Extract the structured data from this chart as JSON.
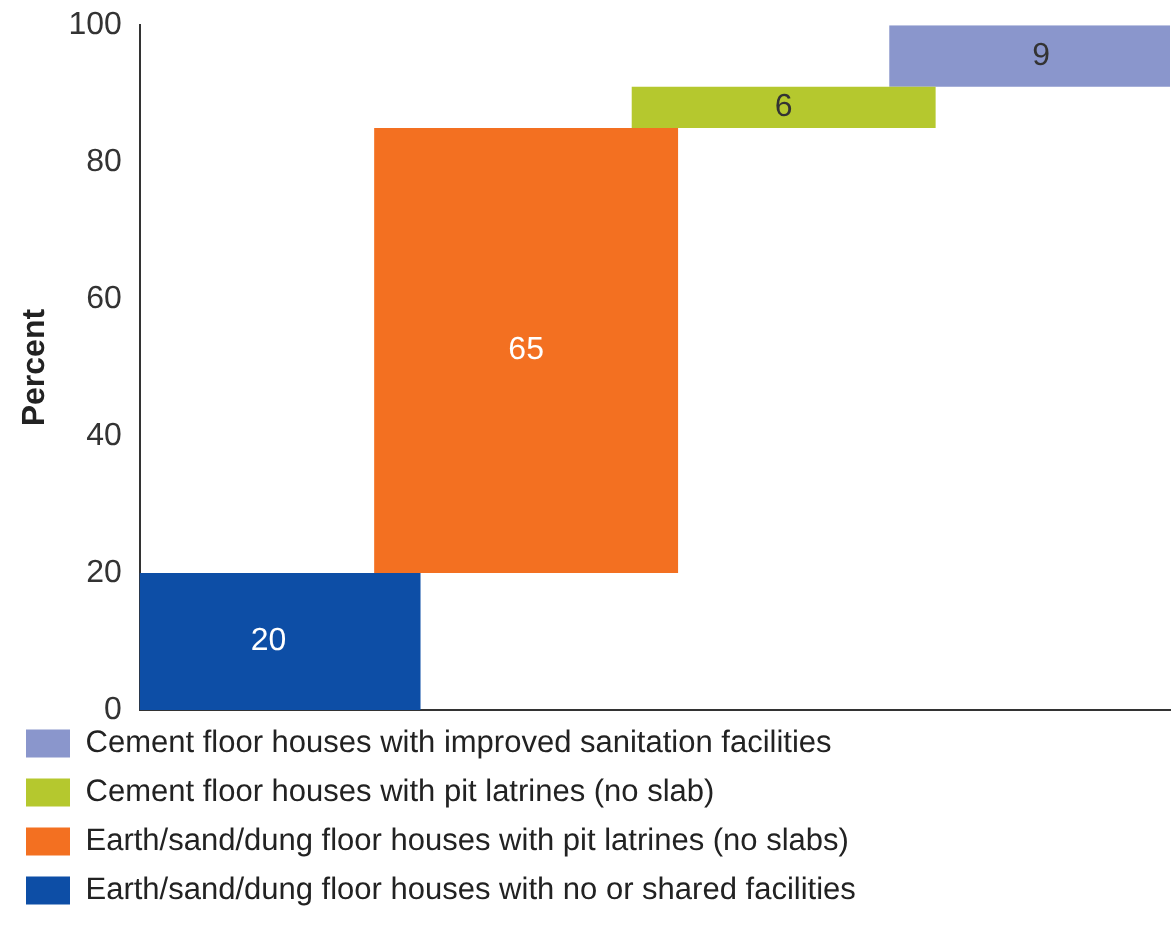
{
  "chart_data": {
    "type": "bar",
    "ylabel": "Percent",
    "categories": [
      null,
      null,
      null,
      null
    ],
    "series": [
      {
        "name": "Earth/sand/dung floor houses with no or shared facilities",
        "color": "#0d4ea6",
        "values": [
          20,
          null,
          null,
          null
        ],
        "base": [
          0,
          null,
          null,
          null
        ]
      },
      {
        "name": "Earth/sand/dung floor houses with pit latrines (no slabs)",
        "color": "#f37021",
        "values": [
          null,
          65,
          null,
          null
        ],
        "base": [
          null,
          20,
          null,
          null
        ]
      },
      {
        "name": "Cement floor houses with pit latrines (no slab)",
        "color": "#b5c82e",
        "values": [
          null,
          null,
          6,
          null
        ],
        "base": [
          null,
          null,
          85,
          null
        ]
      },
      {
        "name": "Cement floor houses with improved sanitation facilities",
        "color": "#8a96cc",
        "values": [
          null,
          null,
          null,
          9
        ],
        "base": [
          null,
          null,
          null,
          91
        ]
      }
    ],
    "ylim": [
      0,
      100
    ],
    "yticks": [
      0,
      20,
      40,
      60,
      80,
      100
    ],
    "grid": false,
    "legend": "bottom",
    "data_labels": true
  }
}
